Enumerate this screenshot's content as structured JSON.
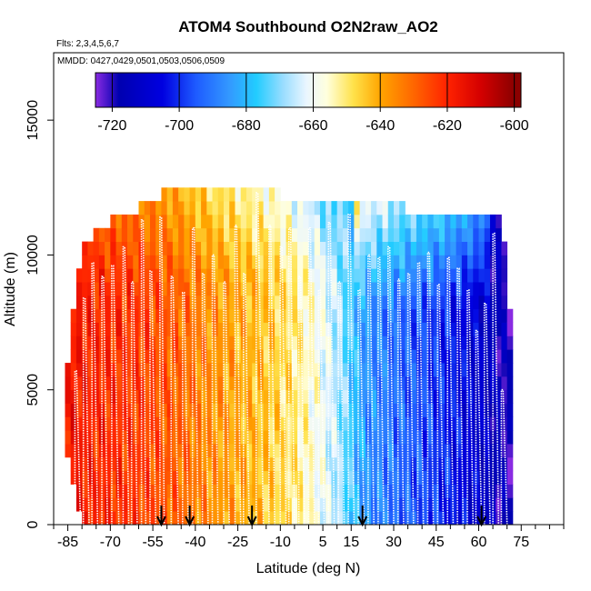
{
  "chart_data": {
    "type": "heatmap",
    "title": "ATOM4 Southbound O2N2raw_AO2",
    "flights_label": "Flts: 2,3,4,5,6,7",
    "dates_label": "MMDD: 0427,0429,0501,0503,0506,0509",
    "xlabel": "Latitude (deg N)",
    "ylabel": "Altitude (m)",
    "xlim": [
      -90,
      90
    ],
    "ylim": [
      0,
      17500
    ],
    "x_ticks": [
      -85,
      -70,
      -55,
      -40,
      -25,
      -10,
      5,
      15,
      30,
      45,
      60,
      75
    ],
    "x_minor_ticks": [
      -90,
      -80,
      -75,
      -65,
      -60,
      -50,
      -45,
      -35,
      -30,
      -20,
      -15,
      -5,
      0,
      10,
      20,
      25,
      35,
      40,
      50,
      55,
      65,
      70,
      80,
      85,
      90
    ],
    "y_ticks": [
      0,
      5000,
      10000,
      15000
    ],
    "y_tick_labels": [
      "0",
      "5000",
      "10000",
      "15000"
    ],
    "colorbar": {
      "min": -725,
      "max": -598,
      "ticks": [
        -720,
        -700,
        -680,
        -660,
        -640,
        -620,
        -600
      ],
      "tick_labels": [
        "-720",
        "-700",
        "-680",
        "-660",
        "-640",
        "-620",
        "-600"
      ],
      "stops": [
        {
          "v": -725,
          "c": "#8A2BE2"
        },
        {
          "v": -718,
          "c": "#0000B0"
        },
        {
          "v": -705,
          "c": "#0000E0"
        },
        {
          "v": -695,
          "c": "#1E5BFF"
        },
        {
          "v": -685,
          "c": "#3399FF"
        },
        {
          "v": -677,
          "c": "#22CCFF"
        },
        {
          "v": -669,
          "c": "#99DDFF"
        },
        {
          "v": -662,
          "c": "#EAF6FF"
        },
        {
          "v": -656,
          "c": "#FFFFDD"
        },
        {
          "v": -648,
          "c": "#FFE24A"
        },
        {
          "v": -640,
          "c": "#FFA500"
        },
        {
          "v": -630,
          "c": "#FF6600"
        },
        {
          "v": -620,
          "c": "#FF2200"
        },
        {
          "v": -610,
          "c": "#D40000"
        },
        {
          "v": -600,
          "c": "#8B0000"
        }
      ]
    },
    "field": {
      "lat_start": -86,
      "lat_end": 72,
      "lat_step": 2,
      "alt_step": 500,
      "top_alt": [
        [
          -86,
          5000
        ],
        [
          -84,
          6500
        ],
        [
          -82,
          9000
        ],
        [
          -80,
          10000
        ],
        [
          -76,
          10500
        ],
        [
          -70,
          11000
        ],
        [
          -60,
          11500
        ],
        [
          -52,
          12000
        ],
        [
          -45,
          12500
        ],
        [
          -20,
          12500
        ],
        [
          -10,
          12000
        ],
        [
          10,
          12000
        ],
        [
          25,
          12000
        ],
        [
          35,
          11500
        ],
        [
          50,
          11500
        ],
        [
          65,
          11500
        ],
        [
          68,
          11000
        ],
        [
          70,
          10000
        ],
        [
          72,
          5500
        ]
      ],
      "bottom_alt": [
        [
          -86,
          3000
        ],
        [
          -84,
          2000
        ],
        [
          -82,
          1200
        ],
        [
          -80,
          500
        ],
        [
          -78,
          0
        ],
        [
          72,
          0
        ]
      ],
      "value_profile": [
        [
          -86,
          -616
        ],
        [
          -75,
          -620
        ],
        [
          -60,
          -623
        ],
        [
          -45,
          -630
        ],
        [
          -35,
          -636
        ],
        [
          -25,
          -640
        ],
        [
          -15,
          -644
        ],
        [
          -5,
          -650
        ],
        [
          5,
          -660
        ],
        [
          12,
          -670
        ],
        [
          20,
          -686
        ],
        [
          30,
          -692
        ],
        [
          40,
          -697
        ],
        [
          50,
          -702
        ],
        [
          60,
          -710
        ],
        [
          68,
          -717
        ],
        [
          72,
          -720
        ]
      ]
    },
    "arrows_lat": [
      -52,
      -42,
      -20,
      19,
      61
    ],
    "profile_style": {
      "color": "#FFFFFF"
    },
    "profiles": [
      {
        "lat": -82.5,
        "lat2": -80.5,
        "top": 5700
      },
      {
        "lat": -79.5,
        "lat2": -77.5,
        "top": 8400
      },
      {
        "lat": -76.5,
        "lat2": -74.5,
        "top": 9700
      },
      {
        "lat": -73,
        "lat2": -71,
        "top": 9200
      },
      {
        "lat": -69.5,
        "lat2": -67,
        "top": 9600
      },
      {
        "lat": -65.5,
        "lat2": -63.5,
        "top": 10300
      },
      {
        "lat": -62.5,
        "lat2": -60.5,
        "top": 9000
      },
      {
        "lat": -59,
        "lat2": -57.5,
        "top": 11300
      },
      {
        "lat": -56,
        "lat2": -54,
        "top": 9400
      },
      {
        "lat": -52.5,
        "lat2": -51,
        "top": 11400
      },
      {
        "lat": -48.5,
        "lat2": -46,
        "top": 9200
      },
      {
        "lat": -44.5,
        "lat2": -42.5,
        "top": 8600
      },
      {
        "lat": -41,
        "lat2": -39,
        "top": 11000
      },
      {
        "lat": -37.5,
        "lat2": -35.5,
        "top": 9300
      },
      {
        "lat": -34,
        "lat2": -32,
        "top": 10000
      },
      {
        "lat": -30,
        "lat2": -28,
        "top": 9000
      },
      {
        "lat": -26,
        "lat2": -24,
        "top": 11100
      },
      {
        "lat": -23,
        "lat2": -21,
        "top": 9300
      },
      {
        "lat": -18.5,
        "lat2": -16,
        "top": 12300
      },
      {
        "lat": -14,
        "lat2": -12,
        "top": 11100
      },
      {
        "lat": -10,
        "lat2": -8,
        "top": 10300
      },
      {
        "lat": -7,
        "lat2": -5,
        "top": 11000
      },
      {
        "lat": -3.5,
        "lat2": -1.5,
        "top": 9200
      },
      {
        "lat": 0,
        "lat2": 2,
        "top": 11000
      },
      {
        "lat": 3.5,
        "lat2": 5.5,
        "top": 8700
      },
      {
        "lat": 7,
        "lat2": 9,
        "top": 11200
      },
      {
        "lat": 10.5,
        "lat2": 12.5,
        "top": 9000
      },
      {
        "lat": 14,
        "lat2": 16,
        "top": 11500
      },
      {
        "lat": 17.5,
        "lat2": 19.5,
        "top": 8700
      },
      {
        "lat": 21,
        "lat2": 23,
        "top": 10000
      },
      {
        "lat": 24.5,
        "lat2": 26.5,
        "top": 9900
      },
      {
        "lat": 28,
        "lat2": 30,
        "top": 10300
      },
      {
        "lat": 31.5,
        "lat2": 33.5,
        "top": 9100
      },
      {
        "lat": 35,
        "lat2": 37,
        "top": 9300
      },
      {
        "lat": 38.5,
        "lat2": 40.5,
        "top": 9700
      },
      {
        "lat": 42,
        "lat2": 44,
        "top": 10100
      },
      {
        "lat": 45.5,
        "lat2": 47.5,
        "top": 8900
      },
      {
        "lat": 49,
        "lat2": 51,
        "top": 9900
      },
      {
        "lat": 52.5,
        "lat2": 54.5,
        "top": 9500
      },
      {
        "lat": 56,
        "lat2": 58,
        "top": 8700
      },
      {
        "lat": 59,
        "lat2": 61,
        "top": 7200
      },
      {
        "lat": 62,
        "lat2": 64,
        "top": 8200
      },
      {
        "lat": 65,
        "lat2": 67,
        "top": 10800
      },
      {
        "lat": 68,
        "lat2": 70,
        "top": 5000
      }
    ]
  }
}
